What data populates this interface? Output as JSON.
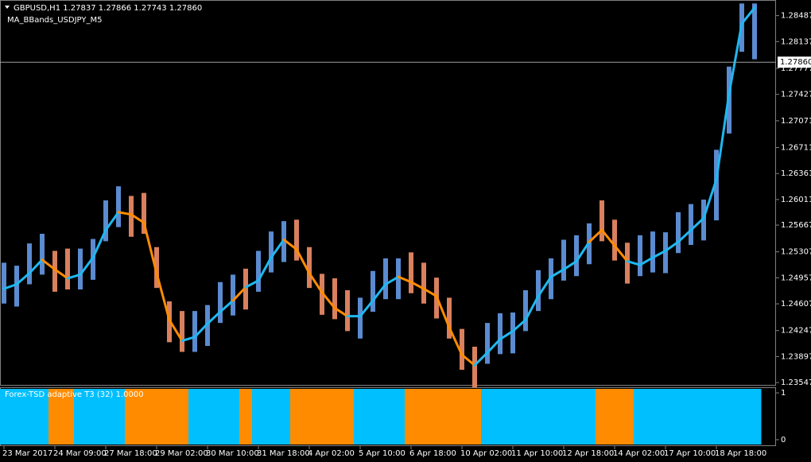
{
  "chart_data": [
    {
      "type": "hilo",
      "title": "GBPUSD,H1  1.27837 1.27866 1.27743 1.27860",
      "subtitle": "MA_BBands_USDJPY_M5",
      "x": [
        0,
        1,
        2,
        3,
        4,
        5,
        6,
        7,
        8,
        9,
        10,
        11,
        12,
        13,
        14,
        15,
        16,
        17,
        18,
        19,
        20,
        21,
        22,
        23,
        24,
        25,
        26,
        27,
        28,
        29,
        30,
        31,
        32,
        33,
        34,
        35,
        36,
        37,
        38,
        39,
        40,
        41,
        42,
        43,
        44,
        45,
        46,
        47,
        48,
        49,
        50,
        51,
        52,
        53,
        54,
        55,
        56,
        57,
        58,
        59
      ],
      "xlim": [
        -0.3125,
        60.6875
      ],
      "xticks": [
        {
          "value": 0,
          "label": "23 Mar 2017"
        },
        {
          "value": 4,
          "label": "24 Mar 09:00"
        },
        {
          "value": 8,
          "label": "27 Mar 18:00"
        },
        {
          "value": 12,
          "label": "29 Mar 02:00"
        },
        {
          "value": 16,
          "label": "30 Mar 10:00"
        },
        {
          "value": 20,
          "label": "31 Mar 18:00"
        },
        {
          "value": 24,
          "label": "4 Apr 02:00"
        },
        {
          "value": 28,
          "label": "5 Apr 10:00"
        },
        {
          "value": 32,
          "label": "6 Apr 18:00"
        },
        {
          "value": 36,
          "label": "10 Apr 02:00"
        },
        {
          "value": 40,
          "label": "11 Apr 10:00"
        },
        {
          "value": 44,
          "label": "12 Apr 18:00"
        },
        {
          "value": 48,
          "label": "14 Apr 02:00"
        },
        {
          "value": 52,
          "label": "17 Apr 10:00"
        },
        {
          "value": 56,
          "label": "18 Apr 18:00"
        }
      ],
      "ylim": [
        1.23516,
        1.28697
      ],
      "yticks": [
        1.28487,
        1.28137,
        1.27777,
        1.27427,
        1.27071,
        1.26711,
        1.26361,
        1.26011,
        1.25667,
        1.25307,
        1.24957,
        1.24607,
        1.24247,
        1.23897,
        1.23547
      ],
      "current": {
        "value": 1.2786,
        "label": "1.27860"
      },
      "high": [
        1.2516,
        1.2512,
        1.2542,
        1.2555,
        1.2532,
        1.2535,
        1.2535,
        1.2548,
        1.26,
        1.2619,
        1.2606,
        1.261,
        1.2537,
        1.2464,
        1.2451,
        1.2451,
        1.2459,
        1.249,
        1.25,
        1.2508,
        1.2532,
        1.2558,
        1.2572,
        1.2574,
        1.2537,
        1.2501,
        1.2495,
        1.2479,
        1.2469,
        1.2505,
        1.2522,
        1.2522,
        1.253,
        1.2516,
        1.2496,
        1.2469,
        1.2427,
        1.2403,
        1.2435,
        1.2448,
        1.2449,
        1.2479,
        1.2506,
        1.2522,
        1.2547,
        1.2553,
        1.2569,
        1.26,
        1.2574,
        1.2543,
        1.2553,
        1.2558,
        1.2557,
        1.2584,
        1.2595,
        1.2601,
        1.2668,
        1.278,
        1.2865,
        1.2865
      ],
      "low": [
        1.2461,
        1.2457,
        1.2487,
        1.25,
        1.2477,
        1.248,
        1.248,
        1.2493,
        1.2545,
        1.2564,
        1.2551,
        1.2555,
        1.2482,
        1.2409,
        1.2396,
        1.2396,
        1.2404,
        1.2435,
        1.2445,
        1.2453,
        1.2477,
        1.2503,
        1.2517,
        1.2519,
        1.2482,
        1.2446,
        1.244,
        1.2424,
        1.2414,
        1.245,
        1.2467,
        1.2467,
        1.2475,
        1.2461,
        1.2441,
        1.2414,
        1.2372,
        1.2348,
        1.238,
        1.2393,
        1.2394,
        1.2424,
        1.2451,
        1.2467,
        1.2492,
        1.2498,
        1.2514,
        1.2545,
        1.2519,
        1.2488,
        1.2498,
        1.2503,
        1.2502,
        1.2529,
        1.254,
        1.2546,
        1.2573,
        1.269,
        1.28,
        1.279
      ],
      "t3": [
        1.2481,
        1.2487,
        1.2502,
        1.252,
        1.2507,
        1.2495,
        1.25,
        1.2523,
        1.256,
        1.2584,
        1.2581,
        1.257,
        1.2502,
        1.2439,
        1.2411,
        1.2416,
        1.2434,
        1.245,
        1.2465,
        1.2483,
        1.2492,
        1.2523,
        1.2547,
        1.2534,
        1.2502,
        1.2476,
        1.2455,
        1.2444,
        1.2444,
        1.2465,
        1.2487,
        1.2497,
        1.249,
        1.2481,
        1.2471,
        1.2429,
        1.2392,
        1.2378,
        1.2395,
        1.2413,
        1.2424,
        1.2439,
        1.2471,
        1.2497,
        1.2507,
        1.2518,
        1.2544,
        1.256,
        1.2539,
        1.2518,
        1.2513,
        1.2523,
        1.2532,
        1.2544,
        1.256,
        1.2576,
        1.2628,
        1.2744,
        1.2838,
        1.2859
      ],
      "bar_colors": {
        "up": "#5b8bd0",
        "down": "#d9805e"
      },
      "line_colors": {
        "up": "#1fb8f0",
        "down": "#ff8c00"
      }
    },
    {
      "type": "state",
      "title": "Forex-TSD adaptive T3 (32) 1.0000",
      "values": [
        1,
        1,
        1,
        1,
        0,
        0,
        1,
        1,
        1,
        1,
        0,
        0,
        0,
        0,
        0,
        1,
        1,
        1,
        1,
        0,
        1,
        1,
        1,
        0,
        0,
        0,
        0,
        0,
        1,
        1,
        1,
        1,
        0,
        0,
        0,
        0,
        0,
        0,
        1,
        1,
        1,
        1,
        1,
        1,
        1,
        1,
        1,
        0,
        0,
        0,
        1,
        1,
        1,
        1,
        1,
        1,
        1,
        1,
        1,
        1
      ],
      "ylim": [
        -0.12,
        1.12
      ],
      "yticks": [
        1,
        0
      ],
      "colors": {
        "1": "#00bfff",
        "0": "#ff8c00"
      }
    }
  ]
}
